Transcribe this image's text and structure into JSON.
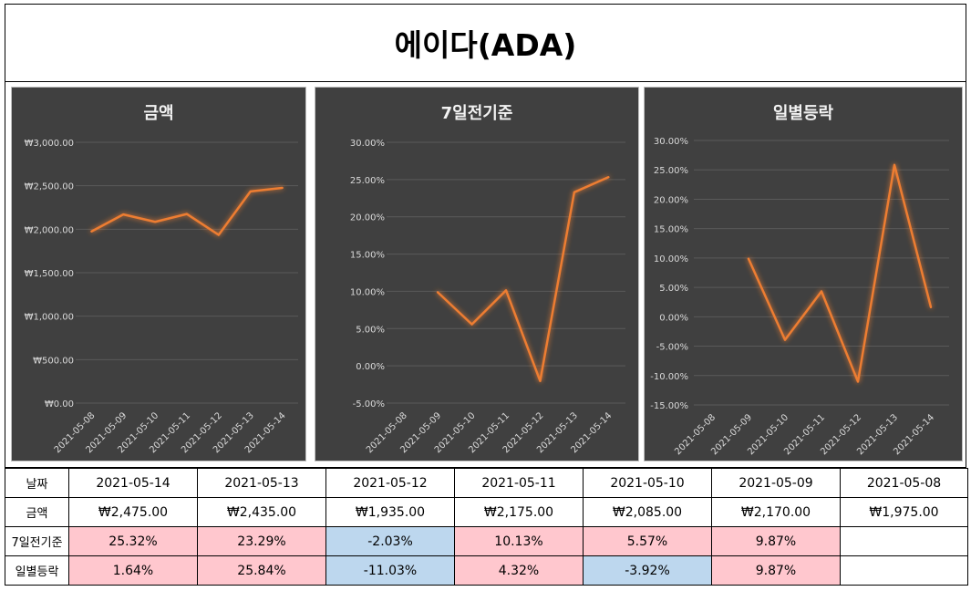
{
  "title": "에이다(ADA)",
  "dates": [
    "2021-05-08",
    "2021-05-09",
    "2021-05-10",
    "2021-05-11",
    "2021-05-12",
    "2021-05-13",
    "2021-05-14"
  ],
  "chart_data": [
    {
      "type": "line",
      "title": "금액",
      "x": [
        "2021-05-08",
        "2021-05-09",
        "2021-05-10",
        "2021-05-11",
        "2021-05-12",
        "2021-05-13",
        "2021-05-14"
      ],
      "values": [
        1975,
        2170,
        2085,
        2175,
        1935,
        2435,
        2475
      ],
      "ylim": [
        0,
        3000
      ],
      "yticks": [
        0,
        500,
        1000,
        1500,
        2000,
        2500,
        3000
      ],
      "ytick_labels": [
        "₩0.00",
        "₩500.00",
        "₩1,000.00",
        "₩1,500.00",
        "₩2,000.00",
        "₩2,500.00",
        "₩3,000.00"
      ],
      "line_color": "#ed7d31",
      "grid": true
    },
    {
      "type": "line",
      "title": "7일전기준",
      "x": [
        "2021-05-08",
        "2021-05-09",
        "2021-05-10",
        "2021-05-11",
        "2021-05-12",
        "2021-05-13",
        "2021-05-14"
      ],
      "values": [
        null,
        9.87,
        5.57,
        10.13,
        -2.03,
        23.29,
        25.32
      ],
      "ylim": [
        -5,
        30
      ],
      "yticks": [
        -5,
        0,
        5,
        10,
        15,
        20,
        25,
        30
      ],
      "ytick_labels": [
        "-5.00%",
        "0.00%",
        "5.00%",
        "10.00%",
        "15.00%",
        "20.00%",
        "25.00%",
        "30.00%"
      ],
      "line_color": "#ed7d31",
      "grid": true
    },
    {
      "type": "line",
      "title": "일별등락",
      "x": [
        "2021-05-08",
        "2021-05-09",
        "2021-05-10",
        "2021-05-11",
        "2021-05-12",
        "2021-05-13",
        "2021-05-14"
      ],
      "values": [
        null,
        9.87,
        -3.92,
        4.32,
        -11.03,
        25.84,
        1.64
      ],
      "ylim": [
        -15,
        30
      ],
      "yticks": [
        -15,
        -10,
        -5,
        0,
        5,
        10,
        15,
        20,
        25,
        30
      ],
      "ytick_labels": [
        "-15.00%",
        "-10.00%",
        "-5.00%",
        "0.00%",
        "5.00%",
        "10.00%",
        "15.00%",
        "20.00%",
        "25.00%",
        "30.00%"
      ],
      "line_color": "#ed7d31",
      "grid": true
    }
  ],
  "table": {
    "rows": [
      {
        "label": "날짜",
        "cells": [
          {
            "v": "2021-05-14",
            "s": ""
          },
          {
            "v": "2021-05-13",
            "s": ""
          },
          {
            "v": "2021-05-12",
            "s": ""
          },
          {
            "v": "2021-05-11",
            "s": ""
          },
          {
            "v": "2021-05-10",
            "s": ""
          },
          {
            "v": "2021-05-09",
            "s": ""
          },
          {
            "v": "2021-05-08",
            "s": ""
          }
        ]
      },
      {
        "label": "금액",
        "cells": [
          {
            "v": "₩2,475.00",
            "s": ""
          },
          {
            "v": "₩2,435.00",
            "s": ""
          },
          {
            "v": "₩1,935.00",
            "s": ""
          },
          {
            "v": "₩2,175.00",
            "s": ""
          },
          {
            "v": "₩2,085.00",
            "s": ""
          },
          {
            "v": "₩2,170.00",
            "s": ""
          },
          {
            "v": "₩1,975.00",
            "s": ""
          }
        ]
      },
      {
        "label": "7일전기준",
        "cells": [
          {
            "v": "25.32%",
            "s": "pos"
          },
          {
            "v": "23.29%",
            "s": "pos"
          },
          {
            "v": "-2.03%",
            "s": "neg"
          },
          {
            "v": "10.13%",
            "s": "pos"
          },
          {
            "v": "5.57%",
            "s": "pos"
          },
          {
            "v": "9.87%",
            "s": "pos"
          },
          {
            "v": "",
            "s": ""
          }
        ]
      },
      {
        "label": "일별등락",
        "cells": [
          {
            "v": "1.64%",
            "s": "pos"
          },
          {
            "v": "25.84%",
            "s": "pos"
          },
          {
            "v": "-11.03%",
            "s": "neg"
          },
          {
            "v": "4.32%",
            "s": "pos"
          },
          {
            "v": "-3.92%",
            "s": "neg"
          },
          {
            "v": "9.87%",
            "s": "pos"
          },
          {
            "v": "",
            "s": ""
          }
        ]
      }
    ]
  }
}
